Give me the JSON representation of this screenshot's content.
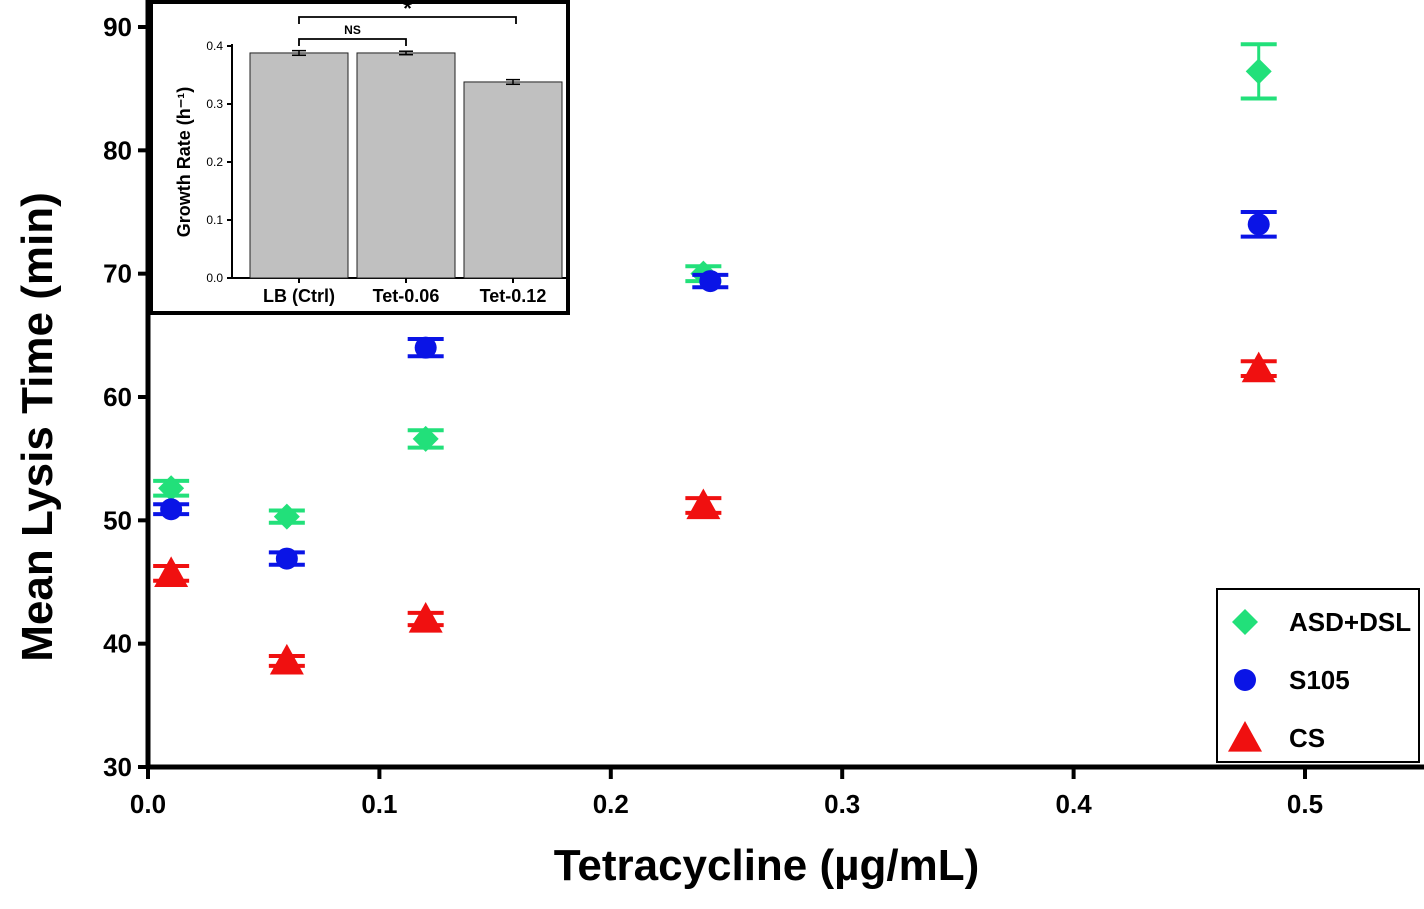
{
  "chart_data": [
    {
      "type": "scatter",
      "title": "",
      "xlabel": "Tetracycline (µg/mL)",
      "ylabel": "Mean Lysis Time (min)",
      "xlim": [
        0.0,
        0.5
      ],
      "ylim": [
        30,
        90
      ],
      "x_ticks": [
        0.0,
        0.1,
        0.2,
        0.3,
        0.4,
        0.5
      ],
      "x_tick_labels": [
        "0.0",
        "0.1",
        "0.2",
        "0.3",
        "0.4",
        "0.5"
      ],
      "y_ticks": [
        30,
        40,
        50,
        60,
        70,
        80,
        90
      ],
      "y_tick_labels": [
        "30",
        "40",
        "50",
        "60",
        "70",
        "80",
        "90"
      ],
      "grid": false,
      "legend_position": "bottom-right",
      "series": [
        {
          "name": "ASD+DSL",
          "marker": "diamond",
          "color": "#22e07a",
          "x": [
            0.01,
            0.06,
            0.12,
            0.24,
            0.48
          ],
          "y": [
            52.6,
            50.3,
            56.6,
            70.0,
            86.4
          ],
          "err": [
            0.6,
            0.5,
            0.7,
            0.6,
            2.2
          ]
        },
        {
          "name": "S105",
          "marker": "circle",
          "color": "#0a14e6",
          "x": [
            0.01,
            0.06,
            0.12,
            0.243,
            0.48
          ],
          "y": [
            50.9,
            46.9,
            64.0,
            69.4,
            74.0
          ],
          "err": [
            0.4,
            0.5,
            0.7,
            0.5,
            1.0
          ]
        },
        {
          "name": "CS",
          "marker": "triangle",
          "color": "#f01010",
          "x": [
            0.01,
            0.06,
            0.12,
            0.24,
            0.48
          ],
          "y": [
            45.7,
            38.6,
            42.0,
            51.2,
            62.3
          ],
          "err": [
            0.6,
            0.4,
            0.5,
            0.6,
            0.6
          ]
        }
      ]
    },
    {
      "type": "bar",
      "title": "",
      "xlabel": "",
      "ylabel": "Growth Rate (h⁻¹)",
      "ylim": [
        0.0,
        0.4
      ],
      "y_ticks": [
        0.0,
        0.1,
        0.2,
        0.3,
        0.4
      ],
      "y_tick_labels": [
        "0.0",
        "0.1",
        "0.2",
        "0.3",
        "0.4"
      ],
      "categories": [
        "LB (Ctrl)",
        "Tet-0.06",
        "Tet-0.12"
      ],
      "values": [
        0.388,
        0.388,
        0.338
      ],
      "err": [
        0.004,
        0.003,
        0.004
      ],
      "bar_color": "#c0c0c0",
      "significance": [
        {
          "pair": [
            0,
            1
          ],
          "label": "NS"
        },
        {
          "pair": [
            0,
            2
          ],
          "label": "*"
        }
      ]
    }
  ]
}
